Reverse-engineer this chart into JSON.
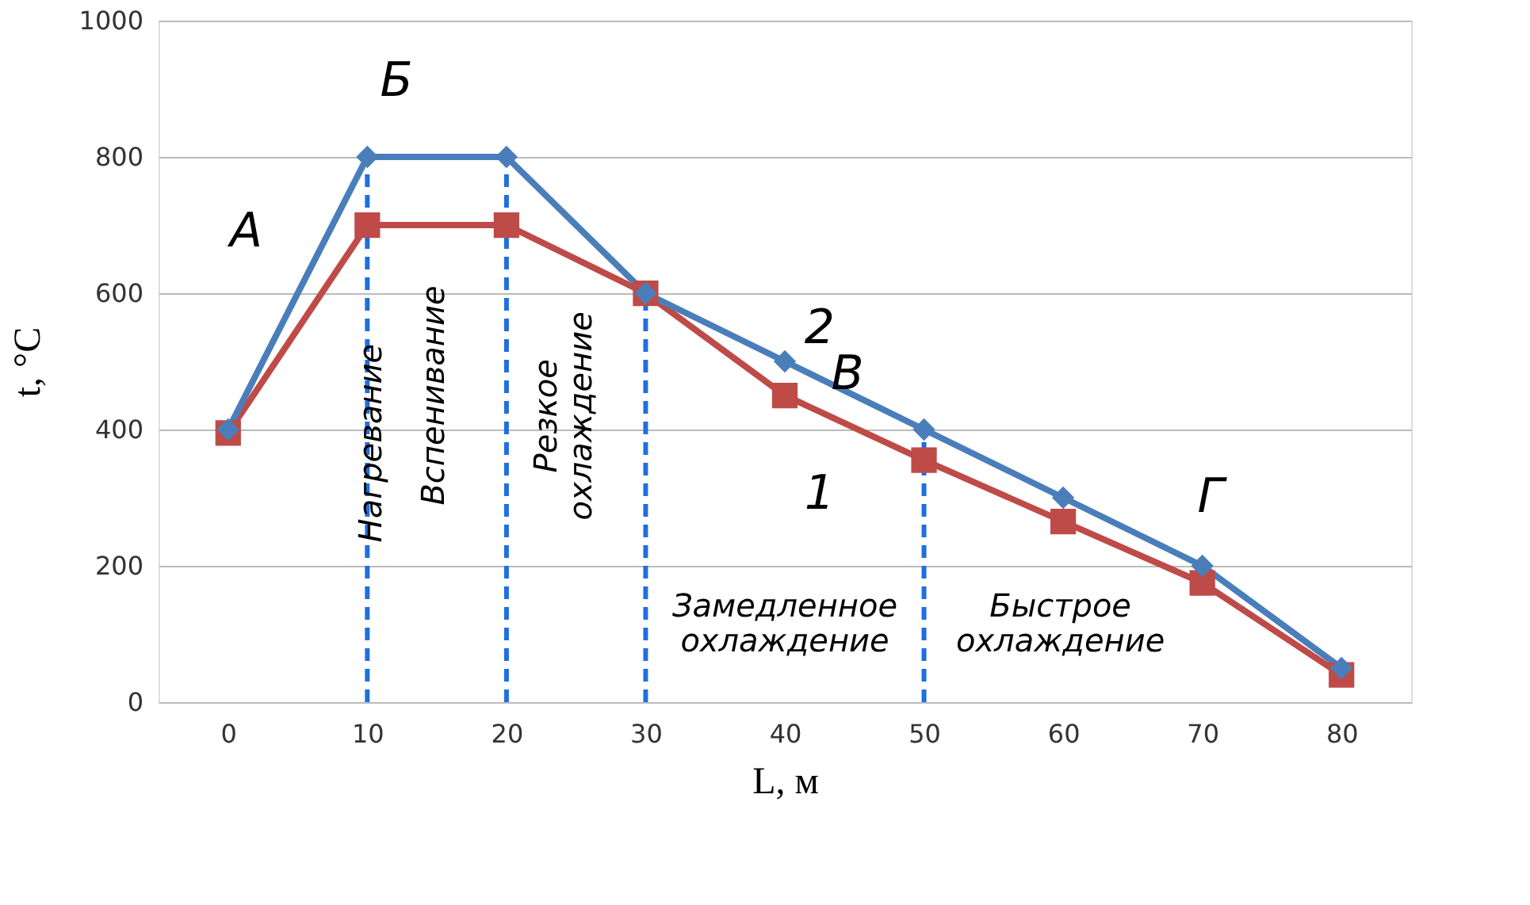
{
  "chart_data": {
    "type": "line",
    "xlabel": "L, м",
    "ylabel": "t, °C",
    "x": [
      0,
      10,
      20,
      30,
      40,
      50,
      60,
      70,
      80
    ],
    "xlim": [
      -5,
      85
    ],
    "xticks": [
      0,
      10,
      20,
      30,
      40,
      50,
      60,
      70,
      80
    ],
    "ylim": [
      0,
      1000
    ],
    "yticks": [
      0,
      200,
      400,
      600,
      800,
      {
        "value": 1000,
        "label": "1000"
      }
    ],
    "grid": "y",
    "line_style": "solid",
    "series": [
      {
        "name": "2",
        "color": "#4a7ebb",
        "marker": "diamond",
        "values": [
          400,
          800,
          800,
          600,
          500,
          400,
          300,
          200,
          50
        ]
      },
      {
        "name": "1",
        "color": "#be4b48",
        "marker": "square",
        "values": [
          395,
          700,
          700,
          600,
          450,
          355,
          265,
          175,
          40
        ]
      }
    ],
    "ref_lines": [
      {
        "axis": "x",
        "value": 10,
        "color": "#1f6fe0",
        "line_style": "dashed"
      },
      {
        "axis": "x",
        "value": 20,
        "color": "#1f6fe0",
        "line_style": "dashed"
      },
      {
        "axis": "x",
        "value": 30,
        "color": "#1f6fe0",
        "line_style": "dashed"
      },
      {
        "axis": "x",
        "value": 50,
        "color": "#1f6fe0",
        "line_style": "dashed"
      }
    ],
    "annotations": [
      "Нагревание",
      "Вспенивание",
      "Резкое охлаждение",
      "Замедленное охлаждение",
      "Быстрое охлаждение",
      "А",
      "Б",
      "В",
      "Г"
    ]
  }
}
